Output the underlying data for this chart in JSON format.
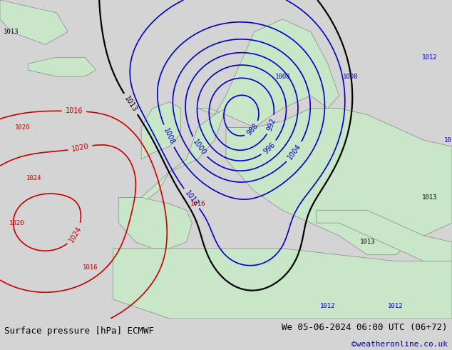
{
  "title_left": "Surface pressure [hPa] ECMWF",
  "title_right": "We 05-06-2024 06:00 UTC (06+72)",
  "credit": "©weatheronline.co.uk",
  "bg_map_color": "#c8e6c8",
  "bg_sea_color": "#e0e0e0",
  "border_color": "#888888",
  "credit_color": "#0000cc",
  "bottom_bar_color": "#d4d4d4",
  "isobar_blue_color": "#0000cc",
  "isobar_red_color": "#cc0000",
  "isobar_black_color": "#000000",
  "blue_isobars": [
    988,
    992,
    996,
    1000,
    1004,
    1008,
    1012
  ],
  "red_isobars": [
    1016,
    1020,
    1024
  ],
  "black_isobars": [
    1013
  ]
}
